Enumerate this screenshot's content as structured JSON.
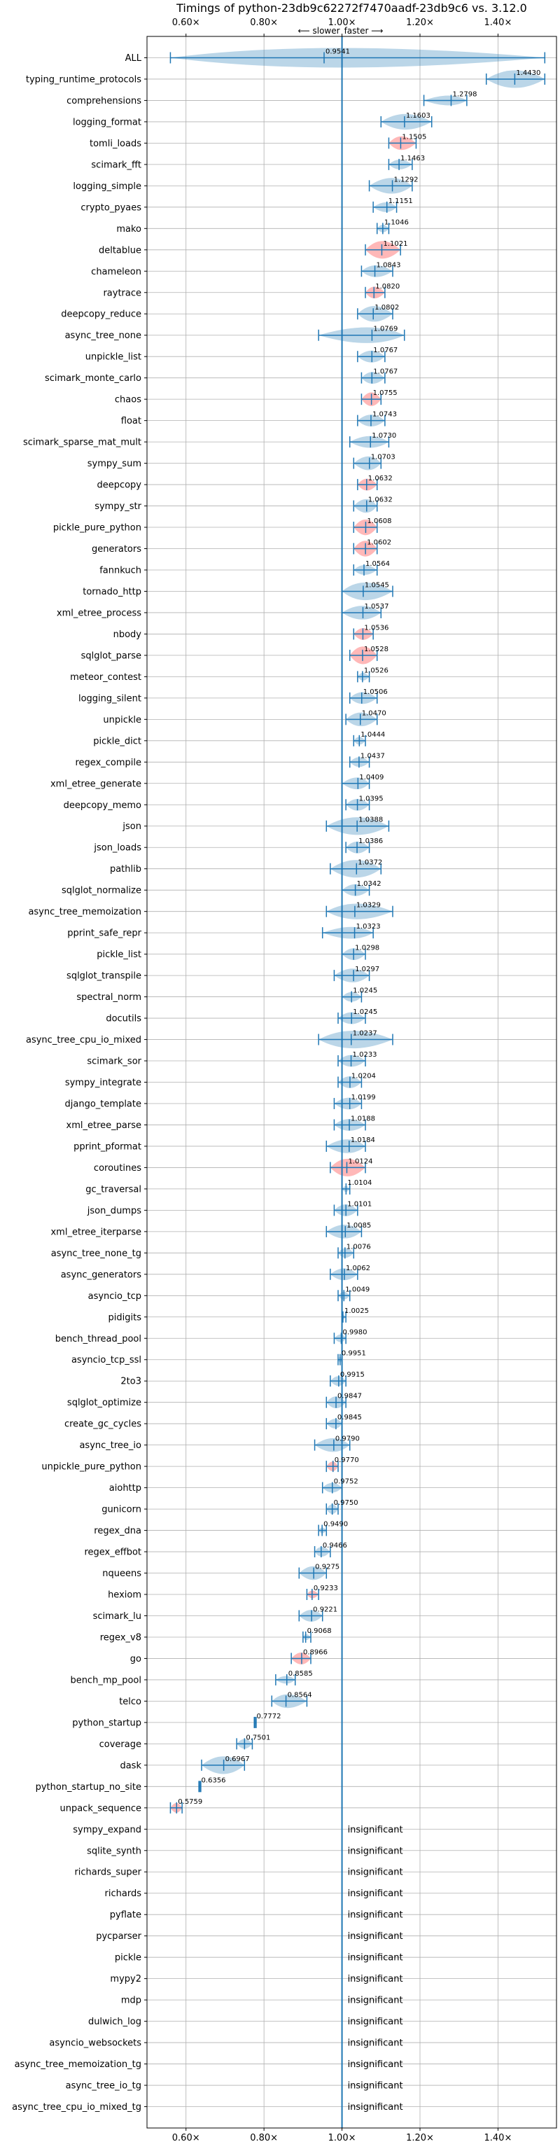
{
  "chart_data": {
    "type": "violin",
    "title": "Timings of python-23db9c62272f7470aadf-23db9c6 vs. 3.12.0",
    "direction_left": "⟵ slower",
    "direction_right": "faster ⟶",
    "xlim": [
      0.5,
      1.55
    ],
    "xticks": [
      0.6,
      0.8,
      1.0,
      1.2,
      1.4
    ],
    "xtick_labels": [
      "0.60×",
      "0.80×",
      "1.00×",
      "1.20×",
      "1.40×"
    ],
    "reference_line": 1.0,
    "grid": true,
    "insignificant_label": "insignificant",
    "colors": {
      "violin": "#1f77b4",
      "violin_highlight": "#ff4d4d",
      "line": "#1f77b4"
    },
    "benchmarks": [
      {
        "name": "ALL",
        "value": 0.9541,
        "label": "0.9541",
        "lo": 0.56,
        "hi": 1.52,
        "w": 1.0
      },
      {
        "name": "typing_runtime_protocols",
        "value": 1.443,
        "label": "1.4430",
        "lo": 1.37,
        "hi": 1.52,
        "w": 0.9
      },
      {
        "name": "comprehensions",
        "value": 1.2798,
        "label": "1.2798",
        "lo": 1.21,
        "hi": 1.32,
        "w": 0.5
      },
      {
        "name": "logging_format",
        "value": 1.1603,
        "label": "1.1603",
        "lo": 1.1,
        "hi": 1.23,
        "w": 0.8
      },
      {
        "name": "tomli_loads",
        "value": 1.1505,
        "label": "1.1505",
        "lo": 1.12,
        "hi": 1.19,
        "w": 0.7,
        "red": true
      },
      {
        "name": "scimark_fft",
        "value": 1.1463,
        "label": "1.1463",
        "lo": 1.12,
        "hi": 1.18,
        "w": 0.5
      },
      {
        "name": "logging_simple",
        "value": 1.1292,
        "label": "1.1292",
        "lo": 1.07,
        "hi": 1.18,
        "w": 0.8
      },
      {
        "name": "crypto_pyaes",
        "value": 1.1151,
        "label": "1.1151",
        "lo": 1.08,
        "hi": 1.14,
        "w": 0.5
      },
      {
        "name": "mako",
        "value": 1.1046,
        "label": "1.1046",
        "lo": 1.09,
        "hi": 1.12,
        "w": 0.4
      },
      {
        "name": "deltablue",
        "value": 1.1021,
        "label": "1.1021",
        "lo": 1.06,
        "hi": 1.15,
        "w": 0.9,
        "red": true
      },
      {
        "name": "chameleon",
        "value": 1.0843,
        "label": "1.0843",
        "lo": 1.05,
        "hi": 1.13,
        "w": 0.6
      },
      {
        "name": "raytrace",
        "value": 1.082,
        "label": "1.0820",
        "lo": 1.06,
        "hi": 1.11,
        "w": 0.6,
        "red": true
      },
      {
        "name": "deepcopy_reduce",
        "value": 1.0802,
        "label": "1.0802",
        "lo": 1.04,
        "hi": 1.13,
        "w": 0.8
      },
      {
        "name": "async_tree_none",
        "value": 1.0769,
        "label": "1.0769",
        "lo": 0.94,
        "hi": 1.16,
        "w": 0.8
      },
      {
        "name": "unpickle_list",
        "value": 1.0767,
        "label": "1.0767",
        "lo": 1.04,
        "hi": 1.11,
        "w": 0.6
      },
      {
        "name": "scimark_monte_carlo",
        "value": 1.0767,
        "label": "1.0767",
        "lo": 1.05,
        "hi": 1.11,
        "w": 0.6
      },
      {
        "name": "chaos",
        "value": 1.0755,
        "label": "1.0755",
        "lo": 1.05,
        "hi": 1.1,
        "w": 0.7,
        "red": true
      },
      {
        "name": "float",
        "value": 1.0743,
        "label": "1.0743",
        "lo": 1.04,
        "hi": 1.11,
        "w": 0.6
      },
      {
        "name": "scimark_sparse_mat_mult",
        "value": 1.073,
        "label": "1.0730",
        "lo": 1.02,
        "hi": 1.12,
        "w": 0.6
      },
      {
        "name": "sympy_sum",
        "value": 1.0703,
        "label": "1.0703",
        "lo": 1.03,
        "hi": 1.1,
        "w": 0.7
      },
      {
        "name": "deepcopy",
        "value": 1.0632,
        "label": "1.0632",
        "lo": 1.04,
        "hi": 1.09,
        "w": 0.6,
        "red": true
      },
      {
        "name": "sympy_str",
        "value": 1.0632,
        "label": "1.0632",
        "lo": 1.03,
        "hi": 1.09,
        "w": 0.7
      },
      {
        "name": "pickle_pure_python",
        "value": 1.0608,
        "label": "1.0608",
        "lo": 1.03,
        "hi": 1.09,
        "w": 0.8,
        "red": true
      },
      {
        "name": "generators",
        "value": 1.0602,
        "label": "1.0602",
        "lo": 1.03,
        "hi": 1.09,
        "w": 0.8,
        "red": true
      },
      {
        "name": "fannkuch",
        "value": 1.0564,
        "label": "1.0564",
        "lo": 1.03,
        "hi": 1.09,
        "w": 0.5
      },
      {
        "name": "tornado_http",
        "value": 1.0545,
        "label": "1.0545",
        "lo": 1.0,
        "hi": 1.13,
        "w": 0.9
      },
      {
        "name": "xml_etree_process",
        "value": 1.0537,
        "label": "1.0537",
        "lo": 1.0,
        "hi": 1.1,
        "w": 0.7
      },
      {
        "name": "nbody",
        "value": 1.0536,
        "label": "1.0536",
        "lo": 1.03,
        "hi": 1.08,
        "w": 0.6,
        "red": true
      },
      {
        "name": "sqlglot_parse",
        "value": 1.0528,
        "label": "1.0528",
        "lo": 1.02,
        "hi": 1.09,
        "w": 0.9,
        "red": true
      },
      {
        "name": "meteor_contest",
        "value": 1.0526,
        "label": "1.0526",
        "lo": 1.04,
        "hi": 1.07,
        "w": 0.4
      },
      {
        "name": "logging_silent",
        "value": 1.0506,
        "label": "1.0506",
        "lo": 1.02,
        "hi": 1.09,
        "w": 0.6
      },
      {
        "name": "unpickle",
        "value": 1.047,
        "label": "1.0470",
        "lo": 1.01,
        "hi": 1.09,
        "w": 0.7
      },
      {
        "name": "pickle_dict",
        "value": 1.0444,
        "label": "1.0444",
        "lo": 1.03,
        "hi": 1.06,
        "w": 0.4
      },
      {
        "name": "regex_compile",
        "value": 1.0437,
        "label": "1.0437",
        "lo": 1.02,
        "hi": 1.07,
        "w": 0.5
      },
      {
        "name": "xml_etree_generate",
        "value": 1.0409,
        "label": "1.0409",
        "lo": 1.0,
        "hi": 1.07,
        "w": 0.6
      },
      {
        "name": "deepcopy_memo",
        "value": 1.0395,
        "label": "1.0395",
        "lo": 1.01,
        "hi": 1.07,
        "w": 0.6
      },
      {
        "name": "json",
        "value": 1.0388,
        "label": "1.0388",
        "lo": 0.96,
        "hi": 1.12,
        "w": 0.9
      },
      {
        "name": "json_loads",
        "value": 1.0386,
        "label": "1.0386",
        "lo": 1.01,
        "hi": 1.07,
        "w": 0.6
      },
      {
        "name": "pathlib",
        "value": 1.0372,
        "label": "1.0372",
        "lo": 0.97,
        "hi": 1.1,
        "w": 0.9
      },
      {
        "name": "sqlglot_normalize",
        "value": 1.0342,
        "label": "1.0342",
        "lo": 1.0,
        "hi": 1.07,
        "w": 0.6
      },
      {
        "name": "async_tree_memoization",
        "value": 1.0329,
        "label": "1.0329",
        "lo": 0.96,
        "hi": 1.13,
        "w": 0.8
      },
      {
        "name": "pprint_safe_repr",
        "value": 1.0323,
        "label": "1.0323",
        "lo": 0.95,
        "hi": 1.08,
        "w": 0.6
      },
      {
        "name": "pickle_list",
        "value": 1.0298,
        "label": "1.0298",
        "lo": 1.0,
        "hi": 1.06,
        "w": 0.6
      },
      {
        "name": "sqlglot_transpile",
        "value": 1.0297,
        "label": "1.0297",
        "lo": 0.98,
        "hi": 1.07,
        "w": 0.7
      },
      {
        "name": "spectral_norm",
        "value": 1.0245,
        "label": "1.0245",
        "lo": 1.0,
        "hi": 1.05,
        "w": 0.5
      },
      {
        "name": "docutils",
        "value": 1.0245,
        "label": "1.0245",
        "lo": 0.99,
        "hi": 1.06,
        "w": 0.6
      },
      {
        "name": "async_tree_cpu_io_mixed",
        "value": 1.0237,
        "label": "1.0237",
        "lo": 0.94,
        "hi": 1.13,
        "w": 0.9
      },
      {
        "name": "scimark_sor",
        "value": 1.0233,
        "label": "1.0233",
        "lo": 0.99,
        "hi": 1.06,
        "w": 0.6
      },
      {
        "name": "sympy_integrate",
        "value": 1.0204,
        "label": "1.0204",
        "lo": 0.99,
        "hi": 1.05,
        "w": 0.6
      },
      {
        "name": "django_template",
        "value": 1.0199,
        "label": "1.0199",
        "lo": 0.98,
        "hi": 1.05,
        "w": 0.6
      },
      {
        "name": "xml_etree_parse",
        "value": 1.0188,
        "label": "1.0188",
        "lo": 0.98,
        "hi": 1.06,
        "w": 0.6
      },
      {
        "name": "pprint_pformat",
        "value": 1.0184,
        "label": "1.0184",
        "lo": 0.96,
        "hi": 1.06,
        "w": 0.7
      },
      {
        "name": "coroutines",
        "value": 1.0124,
        "label": "1.0124",
        "lo": 0.97,
        "hi": 1.06,
        "w": 0.9,
        "red": true
      },
      {
        "name": "gc_traversal",
        "value": 1.0104,
        "label": "1.0104",
        "lo": 1.0,
        "hi": 1.02,
        "w": 0.3
      },
      {
        "name": "json_dumps",
        "value": 1.0101,
        "label": "1.0101",
        "lo": 0.98,
        "hi": 1.04,
        "w": 0.6
      },
      {
        "name": "xml_etree_iterparse",
        "value": 1.0085,
        "label": "1.0085",
        "lo": 0.96,
        "hi": 1.05,
        "w": 0.7
      },
      {
        "name": "async_tree_none_tg",
        "value": 1.0076,
        "label": "1.0076",
        "lo": 0.99,
        "hi": 1.03,
        "w": 0.5
      },
      {
        "name": "async_generators",
        "value": 1.0062,
        "label": "1.0062",
        "lo": 0.97,
        "hi": 1.04,
        "w": 0.6
      },
      {
        "name": "asyncio_tcp",
        "value": 1.0049,
        "label": "1.0049",
        "lo": 0.99,
        "hi": 1.02,
        "w": 0.4
      },
      {
        "name": "pidigits",
        "value": 1.0025,
        "label": "1.0025",
        "lo": 1.0,
        "hi": 1.01,
        "w": 0.2
      },
      {
        "name": "bench_thread_pool",
        "value": 0.998,
        "label": "0.9980",
        "lo": 0.98,
        "hi": 1.01,
        "w": 0.4
      },
      {
        "name": "asyncio_tcp_ssl",
        "value": 0.9951,
        "label": "0.9951",
        "lo": 0.99,
        "hi": 1.0,
        "w": 0.3
      },
      {
        "name": "2to3",
        "value": 0.9915,
        "label": "0.9915",
        "lo": 0.97,
        "hi": 1.01,
        "w": 0.5
      },
      {
        "name": "sqlglot_optimize",
        "value": 0.9847,
        "label": "0.9847",
        "lo": 0.96,
        "hi": 1.01,
        "w": 0.6
      },
      {
        "name": "create_gc_cycles",
        "value": 0.9845,
        "label": "0.9845",
        "lo": 0.96,
        "hi": 1.0,
        "w": 0.5
      },
      {
        "name": "async_tree_io",
        "value": 0.979,
        "label": "0.9790",
        "lo": 0.93,
        "hi": 1.02,
        "w": 0.7
      },
      {
        "name": "unpickle_pure_python",
        "value": 0.977,
        "label": "0.9770",
        "lo": 0.96,
        "hi": 0.99,
        "w": 0.5,
        "red": true
      },
      {
        "name": "aiohttp",
        "value": 0.9752,
        "label": "0.9752",
        "lo": 0.95,
        "hi": 1.0,
        "w": 0.5
      },
      {
        "name": "gunicorn",
        "value": 0.975,
        "label": "0.9750",
        "lo": 0.96,
        "hi": 0.99,
        "w": 0.5
      },
      {
        "name": "regex_dna",
        "value": 0.949,
        "label": "0.9490",
        "lo": 0.94,
        "hi": 0.96,
        "w": 0.3
      },
      {
        "name": "regex_effbot",
        "value": 0.9466,
        "label": "0.9466",
        "lo": 0.93,
        "hi": 0.97,
        "w": 0.5
      },
      {
        "name": "nqueens",
        "value": 0.9275,
        "label": "0.9275",
        "lo": 0.89,
        "hi": 0.96,
        "w": 0.7
      },
      {
        "name": "hexiom",
        "value": 0.9233,
        "label": "0.9233",
        "lo": 0.91,
        "hi": 0.94,
        "w": 0.4,
        "red": true
      },
      {
        "name": "scimark_lu",
        "value": 0.9221,
        "label": "0.9221",
        "lo": 0.89,
        "hi": 0.95,
        "w": 0.6
      },
      {
        "name": "regex_v8",
        "value": 0.9068,
        "label": "0.9068",
        "lo": 0.9,
        "hi": 0.92,
        "w": 0.3
      },
      {
        "name": "go",
        "value": 0.8966,
        "label": "0.8966",
        "lo": 0.87,
        "hi": 0.92,
        "w": 0.6,
        "red": true
      },
      {
        "name": "bench_mp_pool",
        "value": 0.8585,
        "label": "0.8585",
        "lo": 0.83,
        "hi": 0.88,
        "w": 0.4
      },
      {
        "name": "telco",
        "value": 0.8564,
        "label": "0.8564",
        "lo": 0.82,
        "hi": 0.91,
        "w": 0.7
      },
      {
        "name": "python_startup",
        "value": 0.7772,
        "label": "0.7772",
        "lo": 0.775,
        "hi": 0.78,
        "w": 0.2
      },
      {
        "name": "coverage",
        "value": 0.7501,
        "label": "0.7501",
        "lo": 0.73,
        "hi": 0.77,
        "w": 0.5
      },
      {
        "name": "dask",
        "value": 0.6967,
        "label": "0.6967",
        "lo": 0.64,
        "hi": 0.75,
        "w": 0.9
      },
      {
        "name": "python_startup_no_site",
        "value": 0.6356,
        "label": "0.6356",
        "lo": 0.633,
        "hi": 0.638,
        "w": 0.15
      },
      {
        "name": "unpack_sequence",
        "value": 0.5759,
        "label": "0.5759",
        "lo": 0.56,
        "hi": 0.59,
        "w": 0.5,
        "red": true
      },
      {
        "name": "sympy_expand",
        "insignificant": true
      },
      {
        "name": "sqlite_synth",
        "insignificant": true
      },
      {
        "name": "richards_super",
        "insignificant": true
      },
      {
        "name": "richards",
        "insignificant": true
      },
      {
        "name": "pyflate",
        "insignificant": true
      },
      {
        "name": "pycparser",
        "insignificant": true
      },
      {
        "name": "pickle",
        "insignificant": true
      },
      {
        "name": "mypy2",
        "insignificant": true
      },
      {
        "name": "mdp",
        "insignificant": true
      },
      {
        "name": "dulwich_log",
        "insignificant": true
      },
      {
        "name": "asyncio_websockets",
        "insignificant": true
      },
      {
        "name": "async_tree_memoization_tg",
        "insignificant": true
      },
      {
        "name": "async_tree_io_tg",
        "insignificant": true
      },
      {
        "name": "async_tree_cpu_io_mixed_tg",
        "insignificant": true
      }
    ]
  }
}
